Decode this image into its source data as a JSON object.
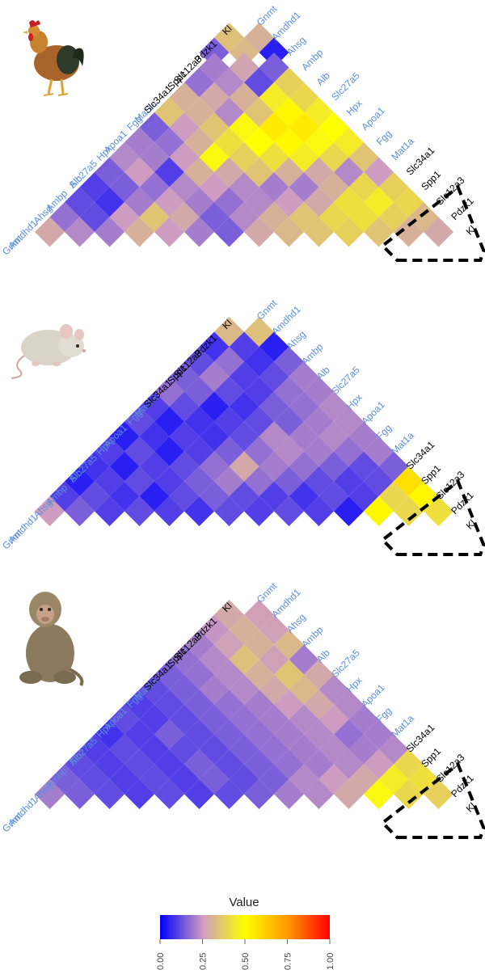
{
  "chart_data": [
    {
      "type": "heatmap",
      "panel": "chicken",
      "picture_icon": "chicken-photo",
      "genes": [
        "Gnmt",
        "Amdhd1",
        "Ahsg",
        "Ambp",
        "Alb",
        "Slc27a5",
        "Hpx",
        "Apoa1",
        "Fgg",
        "Mat1a",
        "Slc34a1",
        "Spp1",
        "Slc12a3",
        "Pdzk1",
        "Kl"
      ],
      "highlight_genes": [
        "Slc34a1",
        "Spp1",
        "Slc12a3",
        "Pdzk1",
        "Kl"
      ],
      "values": [
        [
          0.34,
          0.3
        ],
        [
          0.15,
          0.32,
          0.05
        ],
        [
          0.2,
          0.27,
          0.15
        ],
        [
          0.18,
          0.22,
          0.12,
          0.38
        ],
        [
          0.3,
          0.28,
          0.3,
          0.45,
          0.4
        ],
        [
          0.35,
          0.3,
          0.22,
          0.35,
          0.52,
          0.45
        ],
        [
          0.15,
          0.25,
          0.35,
          0.48,
          0.55,
          0.55,
          0.5
        ],
        [
          0.2,
          0.18,
          0.3,
          0.42,
          0.5,
          0.52,
          0.48,
          0.45
        ],
        [
          0.22,
          0.2,
          0.25,
          0.48,
          0.38,
          0.42,
          0.45,
          0.4,
          0.35
        ],
        [
          0.15,
          0.25,
          0.1,
          0.3,
          0.28,
          0.35,
          0.3,
          0.28,
          0.22,
          0.25
        ],
        [
          0.1,
          0.15,
          0.18,
          0.22,
          0.25,
          0.22,
          0.2,
          0.2,
          0.3,
          0.4,
          0.38
        ],
        [
          0.12,
          0.08,
          0.2,
          0.25,
          0.2,
          0.18,
          0.22,
          0.25,
          0.28,
          0.42,
          0.45,
          0.4
        ],
        [
          0.18,
          0.12,
          0.25,
          0.35,
          0.28,
          0.15,
          0.22,
          0.3,
          0.35,
          0.4,
          0.42,
          0.38,
          0.32
        ],
        [
          0.28,
          0.22,
          0.2,
          0.3,
          0.25,
          0.2,
          0.15,
          0.28,
          0.32,
          0.35,
          0.38,
          0.35,
          0.3,
          0.28
        ]
      ]
    },
    {
      "type": "heatmap",
      "panel": "mouse",
      "picture_icon": "mouse-photo",
      "genes": [
        "Gnmt",
        "Amdhd1",
        "Ahsg",
        "Ambp",
        "Alb",
        "Slc27a5",
        "Hpx",
        "Apoa1",
        "Fgg",
        "Mat1a",
        "Slc34a1",
        "Spp1",
        "Slc12a3",
        "Pdzk1",
        "Kl"
      ],
      "highlight_genes": [
        "Slc34a1",
        "Spp1",
        "Slc12a3",
        "Pdzk1",
        "Kl"
      ],
      "values": [
        [
          0.32,
          0.34
        ],
        [
          0.08,
          0.1,
          0.05
        ],
        [
          0.12,
          0.18,
          0.08,
          0.15
        ],
        [
          0.15,
          0.2,
          0.1,
          0.12,
          0.2
        ],
        [
          0.18,
          0.15,
          0.12,
          0.1,
          0.18,
          0.2
        ],
        [
          0.1,
          0.12,
          0.05,
          0.08,
          0.15,
          0.18,
          0.22
        ],
        [
          0.12,
          0.05,
          0.08,
          0.1,
          0.12,
          0.15,
          0.2,
          0.22
        ],
        [
          0.05,
          0.08,
          0.1,
          0.08,
          0.12,
          0.22,
          0.2,
          0.22,
          0.2
        ],
        [
          0.1,
          0.12,
          0.05,
          0.1,
          0.15,
          0.18,
          0.22,
          0.2,
          0.18,
          0.2
        ],
        [
          0.08,
          0.05,
          0.1,
          0.12,
          0.18,
          0.28,
          0.2,
          0.18,
          0.15,
          0.12,
          0.15
        ],
        [
          0.05,
          0.1,
          0.12,
          0.1,
          0.15,
          0.2,
          0.18,
          0.15,
          0.12,
          0.1,
          0.12,
          0.58
        ],
        [
          0.1,
          0.12,
          0.08,
          0.05,
          0.12,
          0.15,
          0.12,
          0.1,
          0.08,
          0.12,
          0.1,
          0.4,
          0.52
        ],
        [
          0.25,
          0.15,
          0.1,
          0.12,
          0.1,
          0.08,
          0.12,
          0.1,
          0.12,
          0.1,
          0.05,
          0.52,
          0.4,
          0.42
        ]
      ]
    },
    {
      "type": "heatmap",
      "panel": "monkey",
      "picture_icon": "monkey-photo",
      "genes": [
        "Gnmt",
        "Amdhd1",
        "Ahsg",
        "Ambp",
        "Alb",
        "Slc27a5",
        "Hpx",
        "Apoa1",
        "Fgg",
        "Mat1a",
        "Slc34a1",
        "Spp1",
        "Slc12a3",
        "Pdzk1",
        "Kl"
      ],
      "highlight_genes": [
        "Slc34a1",
        "Spp1",
        "Slc12a3",
        "Pdzk1",
        "Kl"
      ],
      "values": [
        [
          0.28,
          0.26
        ],
        [
          0.24,
          0.3,
          0.26
        ],
        [
          0.2,
          0.26,
          0.3,
          0.32
        ],
        [
          0.18,
          0.22,
          0.34,
          0.26,
          0.2
        ],
        [
          0.15,
          0.18,
          0.22,
          0.3,
          0.35,
          0.28
        ],
        [
          0.12,
          0.15,
          0.2,
          0.22,
          0.28,
          0.32,
          0.22
        ],
        [
          0.1,
          0.12,
          0.15,
          0.18,
          0.2,
          0.25,
          0.28,
          0.22
        ],
        [
          0.12,
          0.1,
          0.12,
          0.15,
          0.18,
          0.2,
          0.22,
          0.25,
          0.2
        ],
        [
          0.08,
          0.1,
          0.15,
          0.12,
          0.15,
          0.18,
          0.2,
          0.22,
          0.18,
          0.2
        ],
        [
          0.1,
          0.12,
          0.1,
          0.12,
          0.12,
          0.15,
          0.18,
          0.2,
          0.22,
          0.2,
          0.22
        ],
        [
          0.12,
          0.1,
          0.12,
          0.1,
          0.15,
          0.12,
          0.15,
          0.18,
          0.2,
          0.22,
          0.25,
          0.4
        ],
        [
          0.15,
          0.12,
          0.1,
          0.12,
          0.1,
          0.15,
          0.12,
          0.15,
          0.22,
          0.25,
          0.28,
          0.45,
          0.42
        ],
        [
          0.2,
          0.15,
          0.12,
          0.1,
          0.12,
          0.1,
          0.12,
          0.15,
          0.2,
          0.22,
          0.28,
          0.48,
          0.4,
          0.38
        ]
      ]
    }
  ],
  "legend": {
    "title": "Value",
    "ticks": [
      "0.00",
      "0.25",
      "0.50",
      "0.75",
      "1.00"
    ],
    "tick_values": [
      0,
      0.25,
      0.5,
      0.75,
      1
    ],
    "colors": [
      "#0000ff",
      "#cd9cc0",
      "#ffff00",
      "#ff9a00",
      "#ff0000"
    ]
  },
  "label_colors": {
    "normal": "#5b8fd9",
    "highlight": "#000000"
  }
}
